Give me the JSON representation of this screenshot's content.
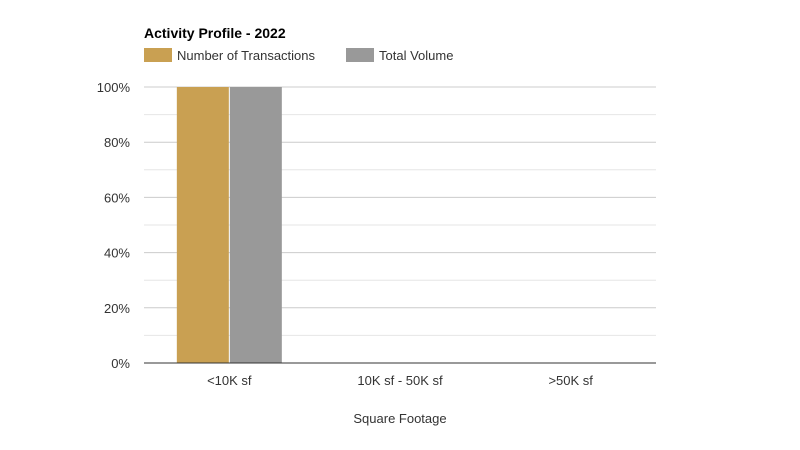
{
  "chart_data": {
    "type": "bar",
    "title": "Activity Profile - 2022",
    "categories": [
      "<10K sf",
      "10K sf - 50K sf",
      ">50K sf"
    ],
    "series": [
      {
        "name": "Number of Transactions",
        "values": [
          100,
          0,
          0
        ],
        "color": "#C9A052"
      },
      {
        "name": "Total Volume",
        "values": [
          100,
          0,
          0
        ],
        "color": "#999999"
      }
    ],
    "xlabel": "Square Footage",
    "ylabel": "",
    "ylim": [
      0,
      100
    ],
    "yticks": [
      "0%",
      "20%",
      "40%",
      "60%",
      "80%",
      "100%"
    ],
    "legend_position": "top-left",
    "grid": true,
    "colors": {
      "grid_major": "#CCCCCC",
      "grid_minor": "#E6E6E6",
      "axis": "#333333",
      "text": "#333333"
    }
  }
}
